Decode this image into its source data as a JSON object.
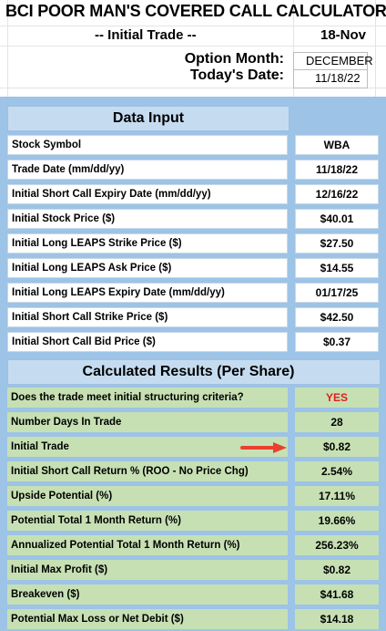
{
  "header": {
    "title": "BCI POOR MAN'S COVERED CALL CALCULATOR",
    "subtitle": "-- Initial Trade --",
    "date_short": "18-Nov",
    "option_month_label": "Option Month:",
    "option_month_value": "DECEMBER",
    "todays_date_label": "Today's Date:",
    "todays_date_value": "11/18/22"
  },
  "data_input": {
    "heading": "Data Input",
    "rows": [
      {
        "label": "Stock Symbol",
        "value": "WBA"
      },
      {
        "label": "Trade Date  (mm/dd/yy)",
        "value": "11/18/22"
      },
      {
        "label": "Initial Short Call Expiry Date  (mm/dd/yy)",
        "value": "12/16/22"
      },
      {
        "label": "Initial Stock Price ($)",
        "value": "$40.01"
      },
      {
        "label": "Initial Long LEAPS Strike Price ($)",
        "value": "$27.50"
      },
      {
        "label": "Initial Long LEAPS Ask Price ($)",
        "value": "$14.55"
      },
      {
        "label": "Initial Long LEAPS Expiry Date (mm/dd/yy)",
        "value": "01/17/25"
      },
      {
        "label": "Initial Short Call Strike Price ($)",
        "value": "$42.50"
      },
      {
        "label": "Initial Short Call Bid Price ($)",
        "value": "$0.37"
      }
    ]
  },
  "results": {
    "heading": "Calculated Results (Per Share)",
    "rows": [
      {
        "label": "Does the trade meet initial structuring criteria?",
        "value": "YES"
      },
      {
        "label": "Number Days In Trade",
        "value": "28"
      },
      {
        "label": "Initial Trade",
        "value": "$0.82"
      },
      {
        "label": "Initial Short Call Return % (ROO - No Price Chg)",
        "value": "2.54%"
      },
      {
        "label": "Upside Potential (%)",
        "value": "17.11%"
      },
      {
        "label": "Potential Total 1 Month Return (%)",
        "value": "19.66%"
      },
      {
        "label": "Annualized Potential Total 1 Month Return (%)",
        "value": "256.23%"
      },
      {
        "label": "Initial Max Profit ($)",
        "value": "$0.82"
      },
      {
        "label": "Breakeven ($)",
        "value": "$41.68"
      },
      {
        "label": "Potential Max Loss or Net Debit ($)",
        "value": "$14.18"
      }
    ]
  },
  "colors": {
    "panel_blue": "#9dc3e6",
    "heading_blue": "#c5dcf0",
    "result_green": "#c6e0b4",
    "yes_red": "#e0201c",
    "arrow_red": "#e8412c"
  },
  "icons": {
    "pointer": "red-arrow-icon"
  }
}
